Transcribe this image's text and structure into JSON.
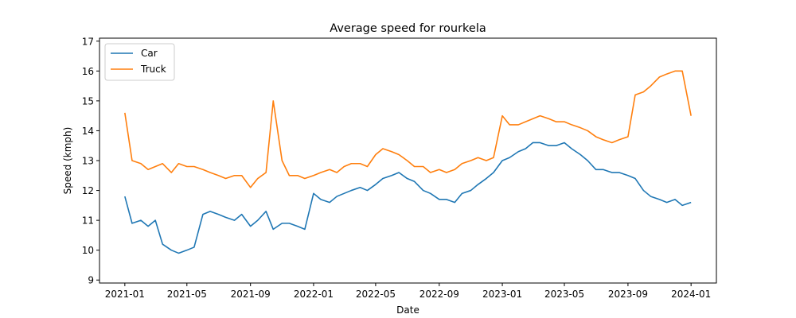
{
  "chart_data": {
    "type": "line",
    "title": "Average speed for rourkela",
    "xlabel": "Date",
    "ylabel": "Speed (kmph)",
    "xlim": [
      "2020-11-13",
      "2024-02-19"
    ],
    "ylim": [
      8.9,
      17.1
    ],
    "x_ticks": [
      "2021-01",
      "2021-05",
      "2021-09",
      "2022-01",
      "2022-05",
      "2022-09",
      "2023-01",
      "2023-05",
      "2023-09",
      "2024-01"
    ],
    "y_ticks": [
      "9",
      "10",
      "11",
      "12",
      "13",
      "14",
      "15",
      "16",
      "17"
    ],
    "grid": false,
    "legend_position": "top-left",
    "x": [
      "2021-01-01",
      "2021-01-15",
      "2021-02-01",
      "2021-02-15",
      "2021-03-01",
      "2021-03-15",
      "2021-04-01",
      "2021-04-15",
      "2021-05-01",
      "2021-05-15",
      "2021-06-01",
      "2021-06-15",
      "2021-07-01",
      "2021-07-15",
      "2021-08-01",
      "2021-08-15",
      "2021-09-01",
      "2021-09-15",
      "2021-10-01",
      "2021-10-15",
      "2021-11-01",
      "2021-11-15",
      "2021-12-01",
      "2021-12-15",
      "2022-01-01",
      "2022-01-15",
      "2022-02-01",
      "2022-02-15",
      "2022-03-01",
      "2022-03-15",
      "2022-04-01",
      "2022-04-15",
      "2022-05-01",
      "2022-05-15",
      "2022-06-01",
      "2022-06-15",
      "2022-07-01",
      "2022-07-15",
      "2022-08-01",
      "2022-08-15",
      "2022-09-01",
      "2022-09-15",
      "2022-10-01",
      "2022-10-15",
      "2022-11-01",
      "2022-11-15",
      "2022-12-01",
      "2022-12-15",
      "2023-01-01",
      "2023-01-15",
      "2023-02-01",
      "2023-02-15",
      "2023-03-01",
      "2023-03-15",
      "2023-04-01",
      "2023-04-15",
      "2023-05-01",
      "2023-05-15",
      "2023-06-01",
      "2023-06-15",
      "2023-07-01",
      "2023-07-15",
      "2023-08-01",
      "2023-08-15",
      "2023-09-01",
      "2023-09-15",
      "2023-10-01",
      "2023-10-15",
      "2023-11-01",
      "2023-11-15",
      "2023-12-01",
      "2023-12-15",
      "2024-01-01"
    ],
    "series": [
      {
        "name": "Car",
        "color": "#1f77b4",
        "values": [
          11.8,
          10.9,
          11.0,
          10.8,
          11.0,
          10.2,
          10.0,
          9.9,
          10.0,
          10.1,
          11.2,
          11.3,
          11.2,
          11.1,
          11.0,
          11.2,
          10.8,
          11.0,
          11.3,
          10.7,
          10.9,
          10.9,
          10.8,
          10.7,
          11.9,
          11.7,
          11.6,
          11.8,
          11.9,
          12.0,
          12.1,
          12.0,
          12.2,
          12.4,
          12.5,
          12.6,
          12.4,
          12.3,
          12.0,
          11.9,
          11.7,
          11.7,
          11.6,
          11.9,
          12.0,
          12.2,
          12.4,
          12.6,
          13.0,
          13.1,
          13.3,
          13.4,
          13.6,
          13.6,
          13.5,
          13.5,
          13.6,
          13.4,
          13.2,
          13.0,
          12.7,
          12.7,
          12.6,
          12.6,
          12.5,
          12.4,
          12.0,
          11.8,
          11.7,
          11.6,
          11.7,
          11.5,
          11.6
        ]
      },
      {
        "name": "Truck",
        "color": "#ff7f0e",
        "values": [
          14.6,
          13.0,
          12.9,
          12.7,
          12.8,
          12.9,
          12.6,
          12.9,
          12.8,
          12.8,
          12.7,
          12.6,
          12.5,
          12.4,
          12.5,
          12.5,
          12.1,
          12.4,
          12.6,
          15.0,
          13.0,
          12.5,
          12.5,
          12.4,
          12.5,
          12.6,
          12.7,
          12.6,
          12.8,
          12.9,
          12.9,
          12.8,
          13.2,
          13.4,
          13.3,
          13.2,
          13.0,
          12.8,
          12.8,
          12.6,
          12.7,
          12.6,
          12.7,
          12.9,
          13.0,
          13.1,
          13.0,
          13.1,
          14.5,
          14.2,
          14.2,
          14.3,
          14.4,
          14.5,
          14.4,
          14.3,
          14.3,
          14.2,
          14.1,
          14.0,
          13.8,
          13.7,
          13.6,
          13.7,
          13.8,
          15.2,
          15.3,
          15.5,
          15.8,
          15.9,
          16.0,
          16.0,
          14.5
        ]
      }
    ]
  }
}
